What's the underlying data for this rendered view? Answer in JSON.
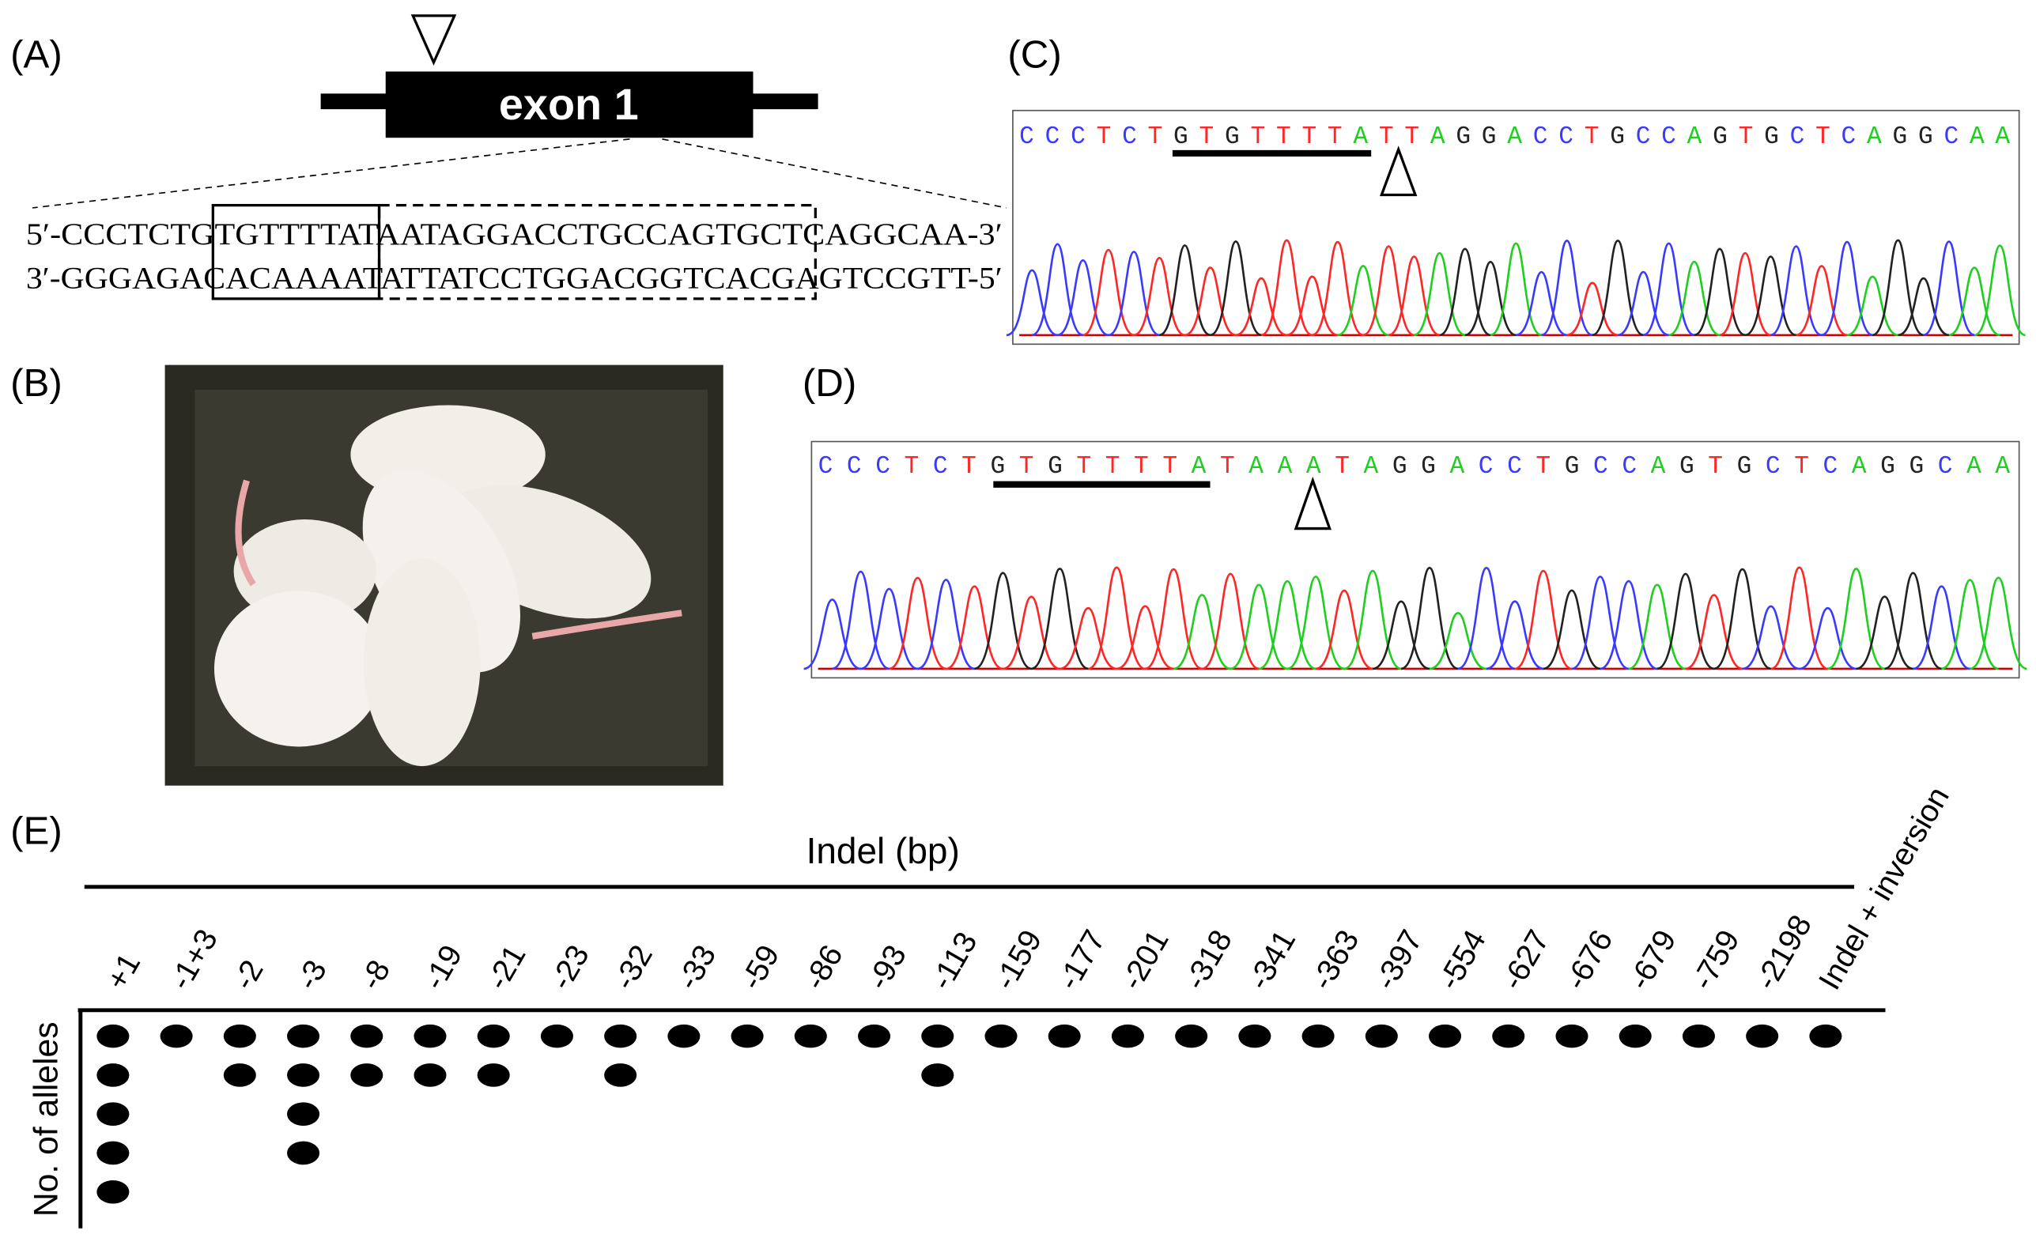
{
  "panels": {
    "a": {
      "label": "(A)",
      "exon": "exon 1",
      "top_strand": "5′-CCCTCTGTGTTTTATAATAGGACCTGCCAGTGCTCAGGCAA-3′",
      "bottom_strand": "3′-GGGAGACACAAAATATTATCCTGGACGGTCACGAGTCCGTT-5′"
    },
    "b": {
      "label": "(B)"
    },
    "c": {
      "label": "(C)",
      "sequence": "CCCTCTGTGTTTTATTAGGACCTGCCAGTGCTCAGGCAA"
    },
    "d": {
      "label": "(D)",
      "sequence": "CCCTCTGTGTTTTATAAATAGGACCTGCCAGTGCTCAGGCAA"
    },
    "e": {
      "label": "(E)"
    }
  },
  "chart_data": {
    "type": "dot",
    "x_title": "Indel (bp)",
    "y_title": "No. of alleles",
    "categories": [
      "+1",
      "-1+3",
      "-2",
      "-3",
      "-8",
      "-19",
      "-21",
      "-23",
      "-32",
      "-33",
      "-59",
      "-86",
      "-93",
      "-113",
      "-159",
      "-177",
      "-201",
      "-318",
      "-341",
      "-363",
      "-397",
      "-554",
      "-627",
      "-676",
      "-679",
      "-759",
      "-2198",
      "Indel + inversion"
    ],
    "values": [
      5,
      1,
      2,
      4,
      2,
      2,
      2,
      1,
      2,
      1,
      1,
      1,
      1,
      2,
      1,
      1,
      1,
      1,
      1,
      1,
      1,
      1,
      1,
      1,
      1,
      1,
      1,
      1
    ],
    "color": "#000000"
  }
}
